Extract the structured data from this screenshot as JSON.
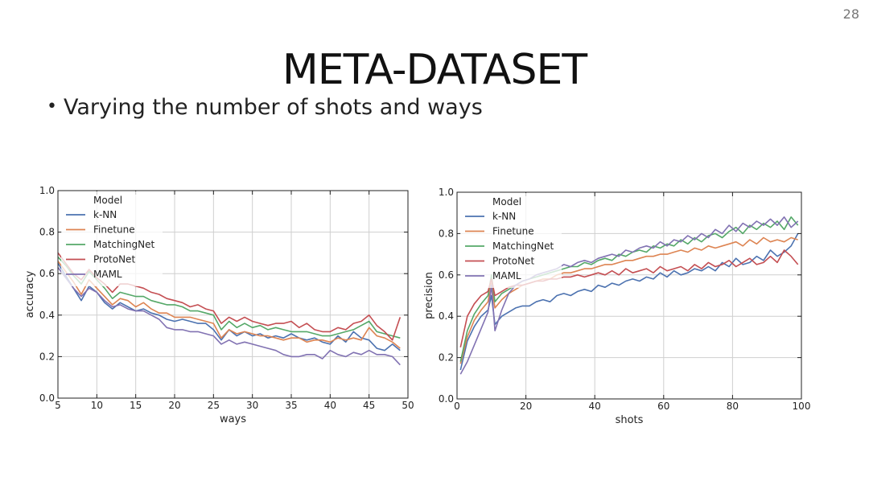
{
  "page_number": "28",
  "title": "META-DATASET",
  "bullet": "Varying the number of shots and ways",
  "colors": {
    "k-NN": "#4c72b0",
    "Finetune": "#dd8452",
    "MatchingNet": "#55a868",
    "ProtoNet": "#c44e52",
    "MAML": "#8172b2"
  },
  "chart_data": [
    {
      "type": "line",
      "xlabel": "ways",
      "ylabel": "accuracy",
      "xlim": [
        5,
        50
      ],
      "ylim": [
        0.0,
        1.0
      ],
      "xticks": [
        5,
        10,
        15,
        20,
        25,
        30,
        35,
        40,
        45,
        50
      ],
      "yticks": [
        0.0,
        0.2,
        0.4,
        0.6,
        0.8,
        1.0
      ],
      "grid": true,
      "legend_title": "Model",
      "legend_position": "top-left",
      "x": [
        5,
        6,
        7,
        8,
        9,
        10,
        11,
        12,
        13,
        14,
        15,
        16,
        17,
        18,
        19,
        20,
        21,
        22,
        23,
        24,
        25,
        26,
        27,
        28,
        29,
        30,
        31,
        32,
        33,
        34,
        35,
        36,
        37,
        38,
        39,
        40,
        41,
        42,
        43,
        44,
        45,
        46,
        47,
        48,
        49
      ],
      "series": [
        {
          "name": "k-NN",
          "values": [
            0.65,
            0.59,
            0.53,
            0.47,
            0.54,
            0.51,
            0.46,
            0.43,
            0.46,
            0.44,
            0.42,
            0.43,
            0.41,
            0.4,
            0.38,
            0.37,
            0.38,
            0.37,
            0.36,
            0.36,
            0.33,
            0.28,
            0.33,
            0.3,
            0.32,
            0.3,
            0.31,
            0.29,
            0.3,
            0.29,
            0.31,
            0.29,
            0.28,
            0.29,
            0.27,
            0.26,
            0.3,
            0.27,
            0.32,
            0.29,
            0.28,
            0.24,
            0.23,
            0.26,
            0.23
          ]
        },
        {
          "name": "Finetune",
          "values": [
            0.66,
            0.61,
            0.56,
            0.5,
            0.57,
            0.53,
            0.49,
            0.45,
            0.48,
            0.47,
            0.44,
            0.46,
            0.43,
            0.41,
            0.41,
            0.39,
            0.39,
            0.39,
            0.38,
            0.37,
            0.36,
            0.29,
            0.33,
            0.31,
            0.32,
            0.31,
            0.3,
            0.3,
            0.29,
            0.28,
            0.29,
            0.29,
            0.27,
            0.28,
            0.28,
            0.27,
            0.29,
            0.28,
            0.29,
            0.28,
            0.34,
            0.3,
            0.29,
            0.27,
            0.24
          ]
        },
        {
          "name": "MatchingNet",
          "values": [
            0.68,
            0.64,
            0.59,
            0.55,
            0.61,
            0.57,
            0.53,
            0.48,
            0.51,
            0.5,
            0.49,
            0.49,
            0.47,
            0.46,
            0.45,
            0.45,
            0.44,
            0.42,
            0.42,
            0.41,
            0.4,
            0.33,
            0.37,
            0.34,
            0.36,
            0.34,
            0.35,
            0.33,
            0.34,
            0.33,
            0.32,
            0.32,
            0.32,
            0.31,
            0.3,
            0.3,
            0.31,
            0.32,
            0.33,
            0.35,
            0.37,
            0.32,
            0.31,
            0.3,
            0.29
          ]
        },
        {
          "name": "ProtoNet",
          "values": [
            0.7,
            0.65,
            0.6,
            0.57,
            0.62,
            0.58,
            0.55,
            0.51,
            0.55,
            0.55,
            0.54,
            0.53,
            0.51,
            0.5,
            0.48,
            0.47,
            0.46,
            0.44,
            0.45,
            0.43,
            0.42,
            0.36,
            0.39,
            0.37,
            0.39,
            0.37,
            0.36,
            0.35,
            0.36,
            0.36,
            0.37,
            0.34,
            0.36,
            0.33,
            0.32,
            0.32,
            0.34,
            0.33,
            0.36,
            0.37,
            0.4,
            0.35,
            0.32,
            0.28,
            0.39
          ]
        },
        {
          "name": "MAML",
          "values": [
            0.63,
            0.58,
            0.53,
            0.49,
            0.53,
            0.51,
            0.47,
            0.44,
            0.45,
            0.43,
            0.42,
            0.42,
            0.4,
            0.38,
            0.34,
            0.33,
            0.33,
            0.32,
            0.32,
            0.31,
            0.3,
            0.26,
            0.28,
            0.26,
            0.27,
            0.26,
            0.25,
            0.24,
            0.23,
            0.21,
            0.2,
            0.2,
            0.21,
            0.21,
            0.19,
            0.23,
            0.21,
            0.2,
            0.22,
            0.21,
            0.23,
            0.21,
            0.21,
            0.2,
            0.16
          ]
        }
      ]
    },
    {
      "type": "line",
      "xlabel": "shots",
      "ylabel": "precision",
      "xlim": [
        0,
        100
      ],
      "ylim": [
        0.0,
        1.0
      ],
      "xticks": [
        0,
        20,
        40,
        60,
        80,
        100
      ],
      "yticks": [
        0.0,
        0.2,
        0.4,
        0.6,
        0.8,
        1.0
      ],
      "grid": true,
      "legend_title": "Model",
      "legend_position": "top-left",
      "x": [
        1,
        3,
        5,
        7,
        9,
        10,
        11,
        13,
        15,
        17,
        19,
        21,
        23,
        25,
        27,
        29,
        31,
        33,
        35,
        37,
        39,
        41,
        43,
        45,
        47,
        49,
        51,
        53,
        55,
        57,
        59,
        61,
        63,
        65,
        67,
        69,
        71,
        73,
        75,
        77,
        79,
        81,
        83,
        85,
        87,
        89,
        91,
        93,
        95,
        97,
        99
      ],
      "series": [
        {
          "name": "k-NN",
          "values": [
            0.14,
            0.28,
            0.35,
            0.4,
            0.43,
            0.5,
            0.36,
            0.4,
            0.42,
            0.44,
            0.45,
            0.45,
            0.47,
            0.48,
            0.47,
            0.5,
            0.51,
            0.5,
            0.52,
            0.53,
            0.52,
            0.55,
            0.54,
            0.56,
            0.55,
            0.57,
            0.58,
            0.57,
            0.59,
            0.58,
            0.61,
            0.59,
            0.62,
            0.6,
            0.61,
            0.63,
            0.62,
            0.64,
            0.62,
            0.66,
            0.64,
            0.68,
            0.65,
            0.66,
            0.69,
            0.67,
            0.72,
            0.69,
            0.71,
            0.74,
            0.8
          ]
        },
        {
          "name": "Finetune",
          "values": [
            0.17,
            0.3,
            0.38,
            0.43,
            0.47,
            0.56,
            0.44,
            0.48,
            0.51,
            0.53,
            0.55,
            0.56,
            0.57,
            0.58,
            0.58,
            0.6,
            0.61,
            0.61,
            0.62,
            0.63,
            0.63,
            0.64,
            0.65,
            0.65,
            0.66,
            0.67,
            0.67,
            0.68,
            0.69,
            0.69,
            0.7,
            0.7,
            0.71,
            0.72,
            0.71,
            0.73,
            0.72,
            0.74,
            0.73,
            0.74,
            0.75,
            0.76,
            0.74,
            0.77,
            0.75,
            0.78,
            0.76,
            0.77,
            0.76,
            0.78,
            0.77
          ]
        },
        {
          "name": "MatchingNet",
          "values": [
            0.18,
            0.33,
            0.41,
            0.46,
            0.5,
            0.6,
            0.47,
            0.51,
            0.53,
            0.55,
            0.57,
            0.58,
            0.59,
            0.6,
            0.61,
            0.62,
            0.63,
            0.64,
            0.64,
            0.66,
            0.65,
            0.67,
            0.68,
            0.67,
            0.7,
            0.69,
            0.71,
            0.72,
            0.71,
            0.74,
            0.73,
            0.75,
            0.74,
            0.77,
            0.75,
            0.78,
            0.76,
            0.79,
            0.8,
            0.78,
            0.81,
            0.83,
            0.8,
            0.84,
            0.82,
            0.85,
            0.83,
            0.86,
            0.82,
            0.88,
            0.84
          ]
        },
        {
          "name": "ProtoNet",
          "values": [
            0.25,
            0.4,
            0.46,
            0.5,
            0.52,
            0.58,
            0.5,
            0.52,
            0.54,
            0.55,
            0.55,
            0.56,
            0.57,
            0.57,
            0.58,
            0.58,
            0.59,
            0.59,
            0.6,
            0.59,
            0.6,
            0.61,
            0.6,
            0.62,
            0.6,
            0.63,
            0.61,
            0.62,
            0.63,
            0.61,
            0.64,
            0.62,
            0.63,
            0.64,
            0.62,
            0.65,
            0.63,
            0.66,
            0.64,
            0.65,
            0.67,
            0.64,
            0.66,
            0.68,
            0.65,
            0.66,
            0.69,
            0.66,
            0.72,
            0.69,
            0.65
          ]
        },
        {
          "name": "MAML",
          "values": [
            0.12,
            0.18,
            0.26,
            0.34,
            0.42,
            0.55,
            0.33,
            0.43,
            0.51,
            0.55,
            0.57,
            0.58,
            0.6,
            0.61,
            0.62,
            0.63,
            0.65,
            0.64,
            0.66,
            0.67,
            0.66,
            0.68,
            0.69,
            0.7,
            0.69,
            0.72,
            0.71,
            0.73,
            0.74,
            0.73,
            0.76,
            0.74,
            0.77,
            0.76,
            0.79,
            0.77,
            0.8,
            0.78,
            0.82,
            0.8,
            0.84,
            0.81,
            0.85,
            0.83,
            0.86,
            0.84,
            0.87,
            0.84,
            0.88,
            0.83,
            0.86
          ]
        }
      ]
    }
  ]
}
